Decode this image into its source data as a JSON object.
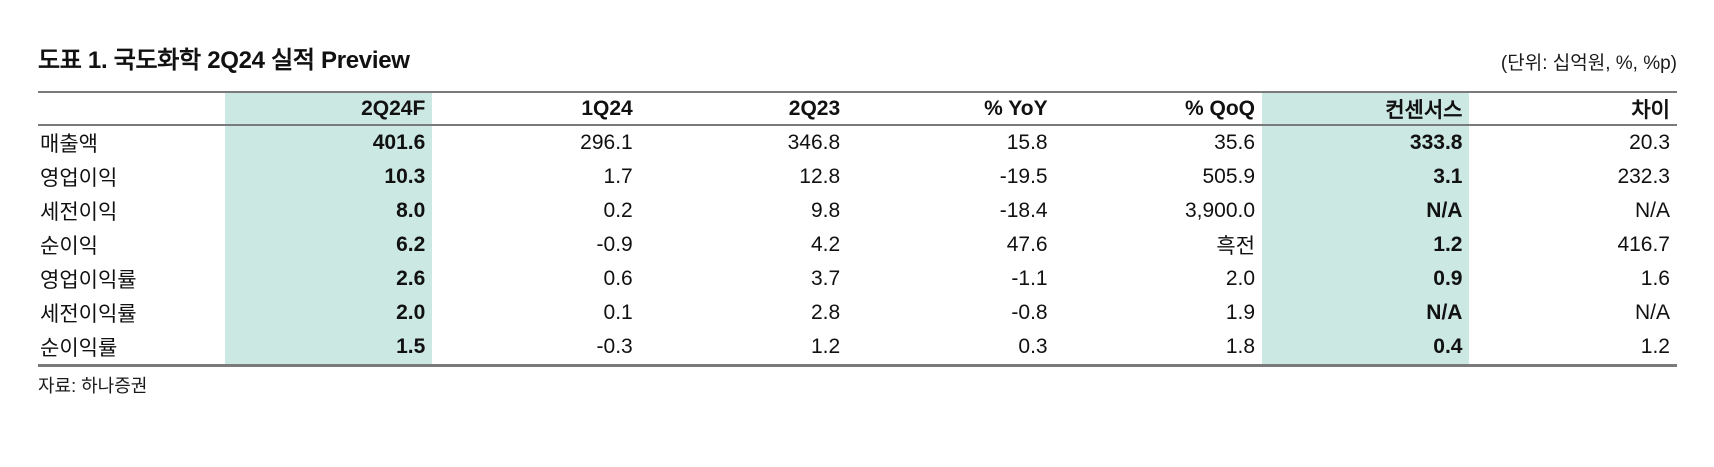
{
  "header": {
    "title": "도표 1. 국도화학 2Q24 실적 Preview",
    "units_note": "(단위: 십억원, %, %p)"
  },
  "table": {
    "columns": [
      "",
      "2Q24F",
      "1Q24",
      "2Q23",
      "% YoY",
      "% QoQ",
      "컨센서스",
      "차이"
    ],
    "highlight_columns": [
      1,
      6
    ],
    "rows": [
      {
        "label": "매출액",
        "values": [
          "401.6",
          "296.1",
          "346.8",
          "15.8",
          "35.6",
          "333.8",
          "20.3"
        ]
      },
      {
        "label": "영업이익",
        "values": [
          "10.3",
          "1.7",
          "12.8",
          "-19.5",
          "505.9",
          "3.1",
          "232.3"
        ]
      },
      {
        "label": "세전이익",
        "values": [
          "8.0",
          "0.2",
          "9.8",
          "-18.4",
          "3,900.0",
          "N/A",
          "N/A"
        ]
      },
      {
        "label": "순이익",
        "values": [
          "6.2",
          "-0.9",
          "4.2",
          "47.6",
          "흑전",
          "1.2",
          "416.7"
        ]
      },
      {
        "label": "영업이익률",
        "values": [
          "2.6",
          "0.6",
          "3.7",
          "-1.1",
          "2.0",
          "0.9",
          "1.6"
        ]
      },
      {
        "label": "세전이익률",
        "values": [
          "2.0",
          "0.1",
          "2.8",
          "-0.8",
          "1.9",
          "N/A",
          "N/A"
        ]
      },
      {
        "label": "순이익률",
        "values": [
          "1.5",
          "-0.3",
          "1.2",
          "0.3",
          "1.8",
          "0.4",
          "1.2"
        ]
      }
    ]
  },
  "footer": {
    "source": "자료: 하나증권"
  },
  "colors": {
    "highlight": "#cbe8e2",
    "border": "#7a7a7a",
    "text": "#111111"
  }
}
